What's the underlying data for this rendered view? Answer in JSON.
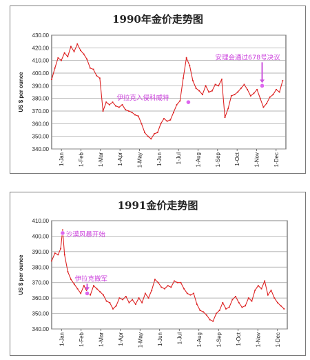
{
  "chart_data": [
    {
      "type": "line",
      "title": "1990年金价走势图",
      "ylabel": "US $ per ounce",
      "ylim": [
        340,
        430
      ],
      "yticks": [
        "340.00",
        "350.00",
        "360.00",
        "370.00",
        "380.00",
        "390.00",
        "400.00",
        "410.00",
        "420.00",
        "430.00"
      ],
      "x_ticks": [
        "1-Jan",
        "1-Feb",
        "1-Mar",
        "1-Apr",
        "1-May",
        "1-Jun",
        "1-Jul",
        "1-Aug",
        "1-Sep",
        "1-Oct",
        "1-Nov",
        "1-Dec"
      ],
      "grid": true,
      "color": "#dd2222",
      "series": [
        {
          "values": [
            [
              0,
              395
            ],
            [
              5,
              404
            ],
            [
              10,
              412
            ],
            [
              15,
              410
            ],
            [
              20,
              416
            ],
            [
              25,
              413
            ],
            [
              30,
              421
            ],
            [
              35,
              417
            ],
            [
              40,
              423
            ],
            [
              45,
              418
            ],
            [
              50,
              415
            ],
            [
              55,
              411
            ],
            [
              60,
              404
            ],
            [
              65,
              403
            ],
            [
              70,
              398
            ],
            [
              75,
              396
            ],
            [
              80,
              370
            ],
            [
              85,
              377
            ],
            [
              90,
              375
            ],
            [
              95,
              377
            ],
            [
              100,
              374
            ],
            [
              105,
              373
            ],
            [
              110,
              375
            ],
            [
              115,
              371
            ],
            [
              120,
              370
            ],
            [
              125,
              369
            ],
            [
              130,
              367
            ],
            [
              135,
              366
            ],
            [
              140,
              360
            ],
            [
              145,
              353
            ],
            [
              150,
              350
            ],
            [
              155,
              348
            ],
            [
              160,
              352
            ],
            [
              165,
              353
            ],
            [
              170,
              360
            ],
            [
              175,
              364
            ],
            [
              180,
              362
            ],
            [
              185,
              363
            ],
            [
              190,
              369
            ],
            [
              195,
              375
            ],
            [
              200,
              378
            ],
            [
              205,
              396
            ],
            [
              210,
              412
            ],
            [
              215,
              406
            ],
            [
              220,
              394
            ],
            [
              225,
              388
            ],
            [
              230,
              386
            ],
            [
              235,
              383
            ],
            [
              240,
              390
            ],
            [
              245,
              385
            ],
            [
              250,
              386
            ],
            [
              255,
              391
            ],
            [
              260,
              390
            ],
            [
              265,
              395
            ],
            [
              270,
              365
            ],
            [
              275,
              372
            ],
            [
              280,
              382
            ],
            [
              285,
              383
            ],
            [
              290,
              385
            ],
            [
              295,
              388
            ],
            [
              300,
              391
            ],
            [
              305,
              387
            ],
            [
              310,
              382
            ],
            [
              315,
              384
            ],
            [
              320,
              387
            ],
            [
              325,
              380
            ],
            [
              330,
              373
            ],
            [
              335,
              376
            ],
            [
              340,
              381
            ],
            [
              345,
              383
            ],
            [
              350,
              387
            ],
            [
              355,
              385
            ],
            [
              360,
              394
            ]
          ]
        }
      ],
      "annotations": [
        {
          "text": "伊拉克入侵科威特",
          "x": 213,
          "y": 377
        },
        {
          "text": "安理会通过678号决议",
          "x": 328,
          "y": 390
        }
      ]
    },
    {
      "type": "line",
      "title": "1991金价走势图",
      "ylabel": "US $ per ounce",
      "ylim": [
        340,
        410
      ],
      "yticks": [
        "340.00",
        "350.00",
        "360.00",
        "370.00",
        "380.00",
        "390.00",
        "400.00",
        "410.00"
      ],
      "x_ticks": [
        "1-Jan",
        "1-Feb",
        "1-Mar",
        "1-Apr",
        "1-May",
        "1-Jun",
        "1-Jul",
        "1-Aug",
        "1-Sep",
        "1-Oct",
        "1-Nov",
        "1-Dec"
      ],
      "grid": true,
      "color": "#dd2222",
      "series": [
        {
          "values": [
            [
              0,
              384
            ],
            [
              5,
              389
            ],
            [
              10,
              388
            ],
            [
              14,
              392
            ],
            [
              17,
              404
            ],
            [
              20,
              388
            ],
            [
              25,
              377
            ],
            [
              30,
              372
            ],
            [
              35,
              369
            ],
            [
              40,
              366
            ],
            [
              45,
              363
            ],
            [
              50,
              368
            ],
            [
              55,
              364
            ],
            [
              60,
              362
            ],
            [
              65,
              368
            ],
            [
              70,
              366
            ],
            [
              75,
              364
            ],
            [
              80,
              362
            ],
            [
              85,
              358
            ],
            [
              90,
              357
            ],
            [
              95,
              353
            ],
            [
              100,
              355
            ],
            [
              105,
              360
            ],
            [
              110,
              359
            ],
            [
              115,
              361
            ],
            [
              120,
              357
            ],
            [
              125,
              359
            ],
            [
              130,
              356
            ],
            [
              135,
              360
            ],
            [
              140,
              357
            ],
            [
              145,
              363
            ],
            [
              150,
              360
            ],
            [
              155,
              365
            ],
            [
              160,
              372
            ],
            [
              165,
              370
            ],
            [
              170,
              367
            ],
            [
              175,
              366
            ],
            [
              180,
              368
            ],
            [
              185,
              367
            ],
            [
              190,
              371
            ],
            [
              195,
              370
            ],
            [
              200,
              370
            ],
            [
              205,
              366
            ],
            [
              210,
              363
            ],
            [
              215,
              362
            ],
            [
              220,
              363
            ],
            [
              225,
              356
            ],
            [
              230,
              352
            ],
            [
              235,
              351
            ],
            [
              240,
              349
            ],
            [
              245,
              346
            ],
            [
              250,
              345
            ],
            [
              255,
              350
            ],
            [
              260,
              352
            ],
            [
              265,
              357
            ],
            [
              270,
              353
            ],
            [
              275,
              354
            ],
            [
              280,
              359
            ],
            [
              285,
              361
            ],
            [
              290,
              357
            ],
            [
              295,
              354
            ],
            [
              300,
              355
            ],
            [
              305,
              360
            ],
            [
              310,
              358
            ],
            [
              315,
              365
            ],
            [
              320,
              368
            ],
            [
              325,
              366
            ],
            [
              330,
              371
            ],
            [
              335,
              362
            ],
            [
              340,
              365
            ],
            [
              345,
              360
            ],
            [
              350,
              357
            ],
            [
              355,
              355
            ],
            [
              360,
              353
            ]
          ]
        }
      ],
      "annotations": [
        {
          "text": "沙漠风暴开始",
          "x": 17,
          "y": 402
        },
        {
          "text": "伊拉克撤军",
          "x": 55,
          "y": 363
        }
      ]
    }
  ]
}
